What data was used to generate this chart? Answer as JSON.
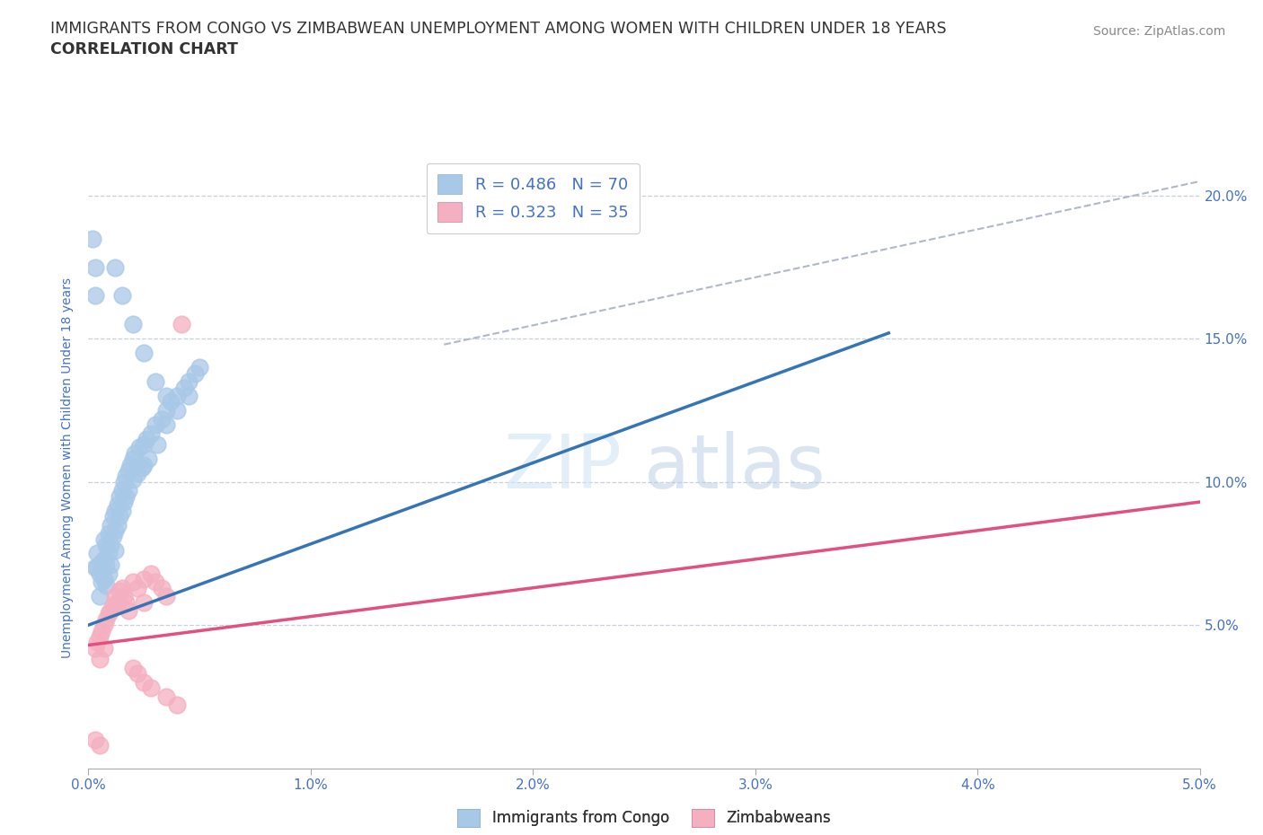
{
  "title_line1": "IMMIGRANTS FROM CONGO VS ZIMBABWEAN UNEMPLOYMENT AMONG WOMEN WITH CHILDREN UNDER 18 YEARS",
  "title_line2": "CORRELATION CHART",
  "source_text": "Source: ZipAtlas.com",
  "ylabel": "Unemployment Among Women with Children Under 18 years",
  "legend_label_1": "Immigrants from Congo",
  "legend_label_2": "Zimbabweans",
  "legend_r1": "R = 0.486",
  "legend_n1": "N = 70",
  "legend_r2": "R = 0.323",
  "legend_n2": "N = 35",
  "color_blue": "#a8c8e8",
  "color_blue_line": "#3575b5",
  "color_pink": "#f4afc0",
  "color_pink_line": "#e05080",
  "color_diag": "#b0b8c8",
  "xlim": [
    0.0,
    0.05
  ],
  "ylim": [
    0.0,
    0.21
  ],
  "x_ticks": [
    0.0,
    0.01,
    0.02,
    0.03,
    0.04,
    0.05
  ],
  "x_tick_labels": [
    "0.0%",
    "1.0%",
    "2.0%",
    "3.0%",
    "4.0%",
    "5.0%"
  ],
  "y_ticks": [
    0.05,
    0.1,
    0.15,
    0.2
  ],
  "y_tick_labels": [
    "5.0%",
    "10.0%",
    "15.0%",
    "20.0%"
  ],
  "blue_scatter_x": [
    0.0003,
    0.0004,
    0.0005,
    0.0005,
    0.0006,
    0.0006,
    0.0007,
    0.0007,
    0.0007,
    0.0008,
    0.0008,
    0.0008,
    0.0009,
    0.0009,
    0.0009,
    0.001,
    0.001,
    0.001,
    0.0011,
    0.0011,
    0.0012,
    0.0012,
    0.0012,
    0.0013,
    0.0013,
    0.0014,
    0.0014,
    0.0015,
    0.0015,
    0.0016,
    0.0016,
    0.0017,
    0.0017,
    0.0018,
    0.0018,
    0.0019,
    0.002,
    0.002,
    0.0021,
    0.0022,
    0.0023,
    0.0024,
    0.0025,
    0.0025,
    0.0026,
    0.0027,
    0.0028,
    0.003,
    0.0031,
    0.0033,
    0.0035,
    0.0037,
    0.004,
    0.0043,
    0.0045,
    0.0048,
    0.005,
    0.0012,
    0.0015,
    0.002,
    0.0025,
    0.003,
    0.0035,
    0.0002,
    0.0003,
    0.0003,
    0.0004,
    0.0035,
    0.004,
    0.0045
  ],
  "blue_scatter_y": [
    0.07,
    0.075,
    0.068,
    0.06,
    0.072,
    0.065,
    0.08,
    0.073,
    0.066,
    0.078,
    0.071,
    0.064,
    0.082,
    0.075,
    0.068,
    0.085,
    0.078,
    0.071,
    0.088,
    0.081,
    0.09,
    0.083,
    0.076,
    0.092,
    0.085,
    0.095,
    0.088,
    0.097,
    0.09,
    0.1,
    0.093,
    0.102,
    0.095,
    0.104,
    0.097,
    0.106,
    0.108,
    0.101,
    0.11,
    0.103,
    0.112,
    0.105,
    0.113,
    0.106,
    0.115,
    0.108,
    0.117,
    0.12,
    0.113,
    0.122,
    0.125,
    0.128,
    0.13,
    0.133,
    0.135,
    0.138,
    0.14,
    0.175,
    0.165,
    0.155,
    0.145,
    0.135,
    0.13,
    0.185,
    0.175,
    0.165,
    0.07,
    0.12,
    0.125,
    0.13
  ],
  "pink_scatter_x": [
    0.0003,
    0.0004,
    0.0005,
    0.0005,
    0.0006,
    0.0007,
    0.0007,
    0.0008,
    0.0009,
    0.001,
    0.0011,
    0.0012,
    0.0013,
    0.0014,
    0.0015,
    0.0016,
    0.0017,
    0.0018,
    0.002,
    0.0022,
    0.0025,
    0.0025,
    0.0028,
    0.003,
    0.0033,
    0.0035,
    0.002,
    0.0022,
    0.0025,
    0.0028,
    0.0035,
    0.004,
    0.0042,
    0.0003,
    0.0005
  ],
  "pink_scatter_y": [
    0.042,
    0.044,
    0.046,
    0.038,
    0.048,
    0.05,
    0.042,
    0.052,
    0.054,
    0.055,
    0.057,
    0.06,
    0.058,
    0.062,
    0.063,
    0.06,
    0.058,
    0.055,
    0.065,
    0.063,
    0.066,
    0.058,
    0.068,
    0.065,
    0.063,
    0.06,
    0.035,
    0.033,
    0.03,
    0.028,
    0.025,
    0.022,
    0.155,
    0.01,
    0.008
  ],
  "blue_line_x": [
    0.0,
    0.036
  ],
  "blue_line_y": [
    0.05,
    0.152
  ],
  "pink_line_x": [
    0.0,
    0.05
  ],
  "pink_line_y": [
    0.043,
    0.093
  ],
  "diag_line_x": [
    0.016,
    0.05
  ],
  "diag_line_y": [
    0.148,
    0.205
  ],
  "watermark_zip": "ZIP",
  "watermark_atlas": "atlas",
  "background_color": "#ffffff",
  "grid_color": "#c8d0dc",
  "title_color": "#333333",
  "axis_color": "#4472c4",
  "tick_color": "#4472c4"
}
